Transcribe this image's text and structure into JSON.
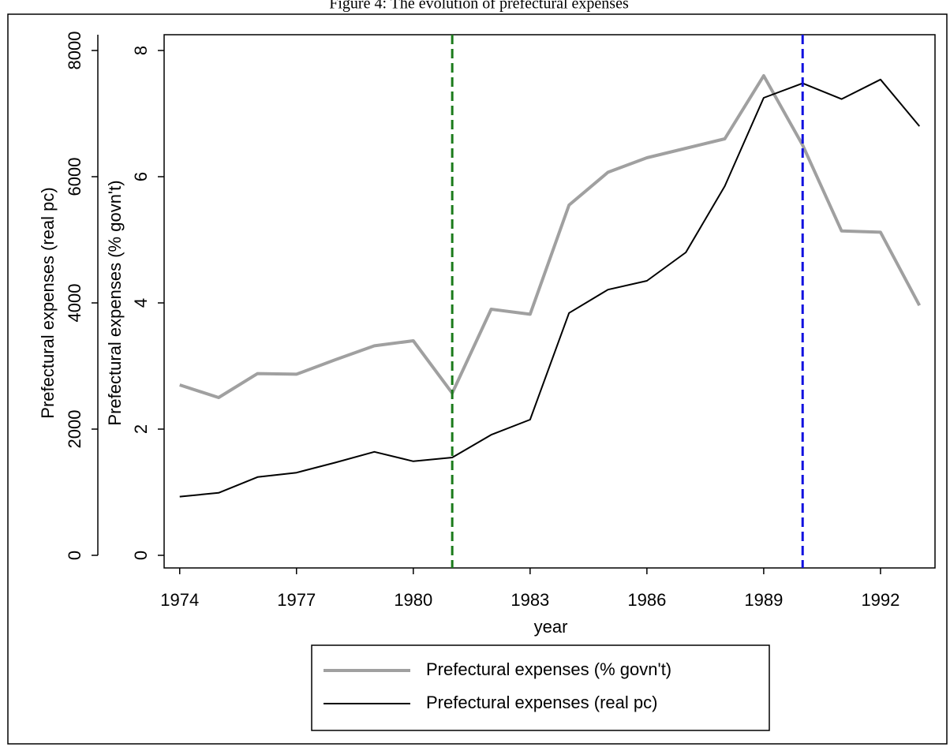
{
  "chart_data": {
    "type": "line",
    "title": "Figure 4: The evolution of prefectural expenses",
    "x_label": "year",
    "y_label": "Prefectural expenses (% govn't)",
    "y2_label": "Prefectural expenses (real pc)",
    "x": [
      1974,
      1975,
      1976,
      1977,
      1978,
      1979,
      1980,
      1981,
      1982,
      1983,
      1984,
      1985,
      1986,
      1987,
      1988,
      1989,
      1990,
      1991,
      1992,
      1993
    ],
    "series": [
      {
        "name": "Prefectural expenses (% govn't)",
        "color": "#a0a0a0",
        "axis": "y",
        "values": [
          2.7,
          2.5,
          2.88,
          2.87,
          3.1,
          3.32,
          3.4,
          2.57,
          3.9,
          3.82,
          5.55,
          6.07,
          6.3,
          6.45,
          6.6,
          7.6,
          6.5,
          5.14,
          5.12,
          3.96
        ]
      },
      {
        "name": "Prefectural expenses (real pc)",
        "color": "#000000",
        "axis": "y2",
        "values": [
          930,
          990,
          1240,
          1310,
          1470,
          1640,
          1490,
          1550,
          1910,
          2150,
          3840,
          4210,
          4350,
          4800,
          5850,
          7250,
          7480,
          7230,
          7540,
          6800
        ]
      }
    ],
    "vlines": [
      {
        "x": 1981,
        "color": "#1a7a1a"
      },
      {
        "x": 1990,
        "color": "#1010e0"
      }
    ],
    "xlim": [
      1973.6,
      1993.4
    ],
    "xticks": [
      1974,
      1977,
      1980,
      1983,
      1986,
      1989,
      1992
    ],
    "ylim": [
      -0.2,
      8.25
    ],
    "yticks": [
      0,
      2,
      4,
      6,
      8
    ],
    "y2lim": [
      -200,
      8250
    ],
    "y2ticks": [
      0,
      2000,
      4000,
      6000,
      8000
    ]
  }
}
